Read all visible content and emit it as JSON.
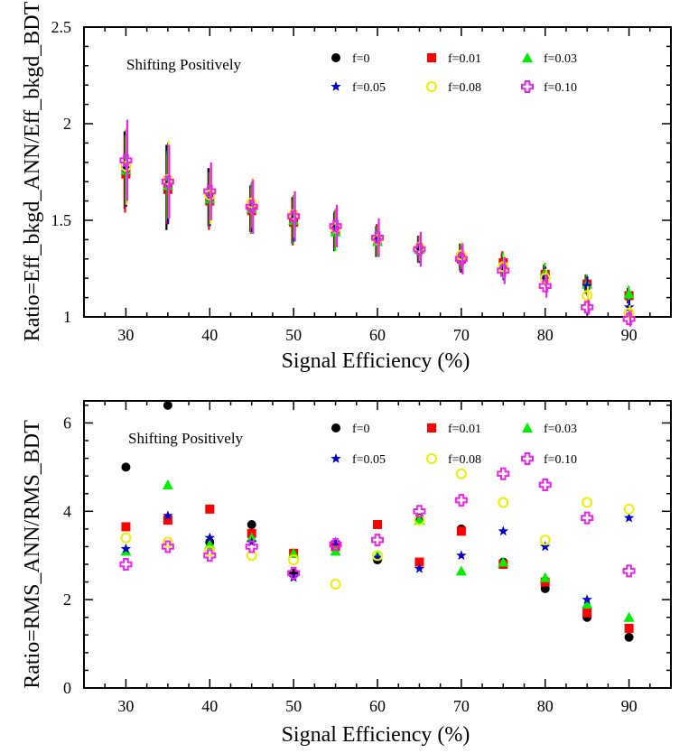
{
  "chart_data": [
    {
      "type": "scatter",
      "title": "",
      "xlabel": "Signal Efficiency (%)",
      "ylabel": "Ratio=Eff_bkgd_ANN/Eff_bkgd_BDT",
      "xlim": [
        25,
        95
      ],
      "ylim": [
        1,
        2.5
      ],
      "xticks": [
        30,
        40,
        50,
        60,
        70,
        80,
        90
      ],
      "yticks": [
        1,
        1.5,
        2,
        2.5
      ],
      "ytick_labels": [
        "1",
        "1.5",
        "2",
        "2.5"
      ],
      "annotation": "Shifting Positively",
      "legend_position": "top-right",
      "x": [
        30,
        35,
        40,
        45,
        50,
        55,
        60,
        65,
        70,
        75,
        80,
        85,
        90
      ],
      "series": [
        {
          "name": "f=0",
          "marker": "circle-filled",
          "color": "#000000",
          "values": [
            1.76,
            1.67,
            1.62,
            1.56,
            1.5,
            1.44,
            1.39,
            1.35,
            1.31,
            1.27,
            1.22,
            1.17,
            1.11
          ],
          "err": [
            0.2,
            0.22,
            0.15,
            0.12,
            0.12,
            0.1,
            0.08,
            0.07,
            0.07,
            0.06,
            0.05,
            0.05,
            0.04
          ]
        },
        {
          "name": "f=0.01",
          "marker": "square-filled",
          "color": "#ff0000",
          "values": [
            1.74,
            1.66,
            1.6,
            1.55,
            1.49,
            1.45,
            1.4,
            1.35,
            1.3,
            1.28,
            1.22,
            1.17,
            1.11
          ],
          "err": [
            0.2,
            0.18,
            0.15,
            0.12,
            0.12,
            0.1,
            0.08,
            0.07,
            0.07,
            0.06,
            0.05,
            0.05,
            0.04
          ]
        },
        {
          "name": "f=0.03",
          "marker": "triangle-filled",
          "color": "#00ee00",
          "values": [
            1.76,
            1.68,
            1.61,
            1.56,
            1.5,
            1.44,
            1.39,
            1.35,
            1.31,
            1.27,
            1.23,
            1.17,
            1.12
          ],
          "err": [
            0.18,
            0.18,
            0.14,
            0.13,
            0.12,
            0.1,
            0.08,
            0.07,
            0.07,
            0.06,
            0.05,
            0.05,
            0.04
          ]
        },
        {
          "name": "f=0.05",
          "marker": "star",
          "color": "#0000cc",
          "values": [
            1.77,
            1.69,
            1.62,
            1.57,
            1.51,
            1.46,
            1.4,
            1.35,
            1.3,
            1.25,
            1.21,
            1.16,
            1.05
          ],
          "err": [
            0.2,
            0.21,
            0.15,
            0.13,
            0.12,
            0.1,
            0.08,
            0.07,
            0.07,
            0.06,
            0.05,
            0.05,
            0.04
          ]
        },
        {
          "name": "f=0.08",
          "marker": "circle-open",
          "color": "#eeee00",
          "values": [
            1.78,
            1.71,
            1.63,
            1.59,
            1.53,
            1.46,
            1.4,
            1.36,
            1.32,
            1.26,
            1.2,
            1.11,
            1.02
          ],
          "err": [
            0.2,
            0.2,
            0.15,
            0.13,
            0.12,
            0.1,
            0.08,
            0.07,
            0.07,
            0.06,
            0.05,
            0.05,
            0.04
          ]
        },
        {
          "name": "f=0.10",
          "marker": "cross-open",
          "color": "#ee22ee",
          "values": [
            1.81,
            1.7,
            1.65,
            1.57,
            1.52,
            1.47,
            1.41,
            1.35,
            1.3,
            1.24,
            1.16,
            1.05,
            0.99
          ],
          "err": [
            0.21,
            0.19,
            0.15,
            0.14,
            0.13,
            0.11,
            0.1,
            0.09,
            0.08,
            0.07,
            0.06,
            0.04,
            0.04
          ]
        }
      ]
    },
    {
      "type": "scatter",
      "title": "",
      "xlabel": "Signal Efficiency (%)",
      "ylabel": "Ratio=RMS_ANN/RMS_BDT",
      "xlim": [
        25,
        95
      ],
      "ylim": [
        0,
        6.5
      ],
      "xticks": [
        30,
        40,
        50,
        60,
        70,
        80,
        90
      ],
      "yticks": [
        0,
        2,
        4,
        6
      ],
      "ytick_labels": [
        "0",
        "2",
        "4",
        "6"
      ],
      "annotation": "Shifting Positively",
      "legend_position": "top-right",
      "x": [
        30,
        35,
        40,
        45,
        50,
        55,
        60,
        65,
        70,
        75,
        80,
        85,
        90
      ],
      "series": [
        {
          "name": "f=0",
          "marker": "circle-filled",
          "color": "#000000",
          "values": [
            5.0,
            6.4,
            3.3,
            3.7,
            2.6,
            3.2,
            2.9,
            3.85,
            3.6,
            2.85,
            2.25,
            1.6,
            1.15
          ]
        },
        {
          "name": "f=0.01",
          "marker": "square-filled",
          "color": "#ff0000",
          "values": [
            3.65,
            3.8,
            4.05,
            3.5,
            3.05,
            3.2,
            3.7,
            2.85,
            3.55,
            2.8,
            2.4,
            1.7,
            1.35
          ]
        },
        {
          "name": "f=0.03",
          "marker": "triangle-filled",
          "color": "#00ee00",
          "values": [
            3.1,
            4.6,
            3.25,
            3.4,
            3.05,
            3.1,
            3.0,
            3.8,
            2.65,
            2.85,
            2.5,
            1.9,
            1.6
          ]
        },
        {
          "name": "f=0.05",
          "marker": "star",
          "color": "#0000cc",
          "values": [
            3.15,
            3.9,
            3.4,
            3.3,
            2.5,
            3.3,
            2.95,
            2.7,
            3.0,
            3.55,
            3.2,
            2.0,
            3.85
          ]
        },
        {
          "name": "f=0.08",
          "marker": "circle-open",
          "color": "#eeee00",
          "values": [
            3.4,
            3.3,
            3.1,
            3.0,
            2.9,
            2.35,
            3.0,
            3.8,
            4.85,
            4.2,
            3.35,
            4.2,
            4.05
          ]
        },
        {
          "name": "f=0.10",
          "marker": "cross-open",
          "color": "#ee22ee",
          "values": [
            2.8,
            3.2,
            3.0,
            3.2,
            2.6,
            3.25,
            3.35,
            4.0,
            4.25,
            4.85,
            4.6,
            3.85,
            2.65
          ]
        }
      ]
    }
  ]
}
